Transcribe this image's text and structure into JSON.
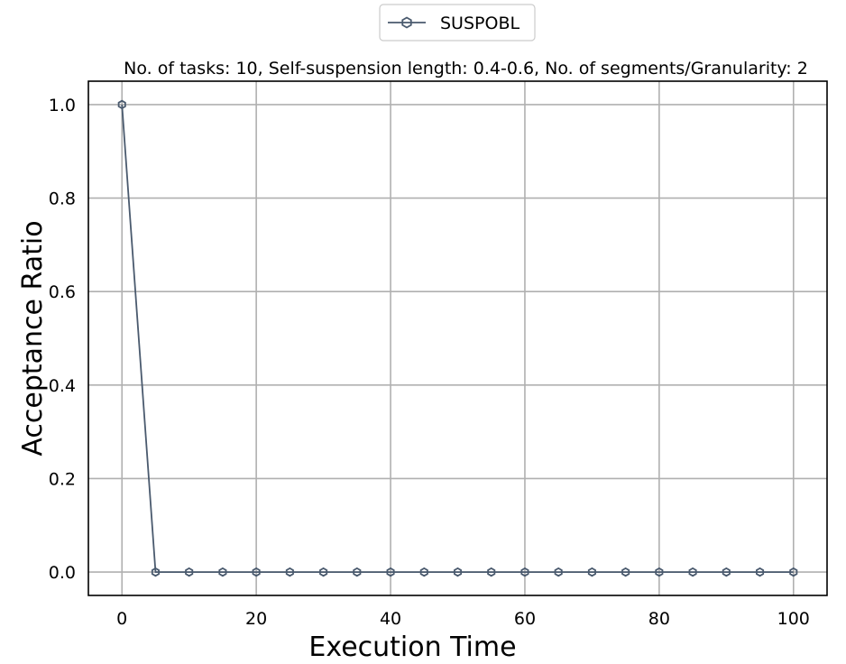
{
  "chart_data": {
    "type": "line",
    "title": "No. of tasks: 10, Self-suspension length: 0.4-0.6, No. of segments/Granularity: 2",
    "xlabel": "Execution Time",
    "ylabel": "Acceptance Ratio",
    "xlim": [
      -5,
      105
    ],
    "ylim": [
      -0.05,
      1.05
    ],
    "x_ticks": [
      0,
      20,
      40,
      60,
      80,
      100
    ],
    "y_ticks": [
      0.0,
      0.2,
      0.4,
      0.6,
      0.8,
      1.0
    ],
    "x_tick_labels": [
      "0",
      "20",
      "40",
      "60",
      "80",
      "100"
    ],
    "y_tick_labels": [
      "0.0",
      "0.2",
      "0.4",
      "0.6",
      "0.8",
      "1.0"
    ],
    "grid": true,
    "legend_position": "top-center, outside plot",
    "series": [
      {
        "name": "SUSPOBL",
        "color": "#4a5a6e",
        "marker": "hexagon-open",
        "x": [
          0,
          5,
          10,
          15,
          20,
          25,
          30,
          35,
          40,
          45,
          50,
          55,
          60,
          65,
          70,
          75,
          80,
          85,
          90,
          95,
          100
        ],
        "y": [
          1.0,
          0.0,
          0.0,
          0.0,
          0.0,
          0.0,
          0.0,
          0.0,
          0.0,
          0.0,
          0.0,
          0.0,
          0.0,
          0.0,
          0.0,
          0.0,
          0.0,
          0.0,
          0.0,
          0.0,
          0.0
        ]
      }
    ]
  }
}
